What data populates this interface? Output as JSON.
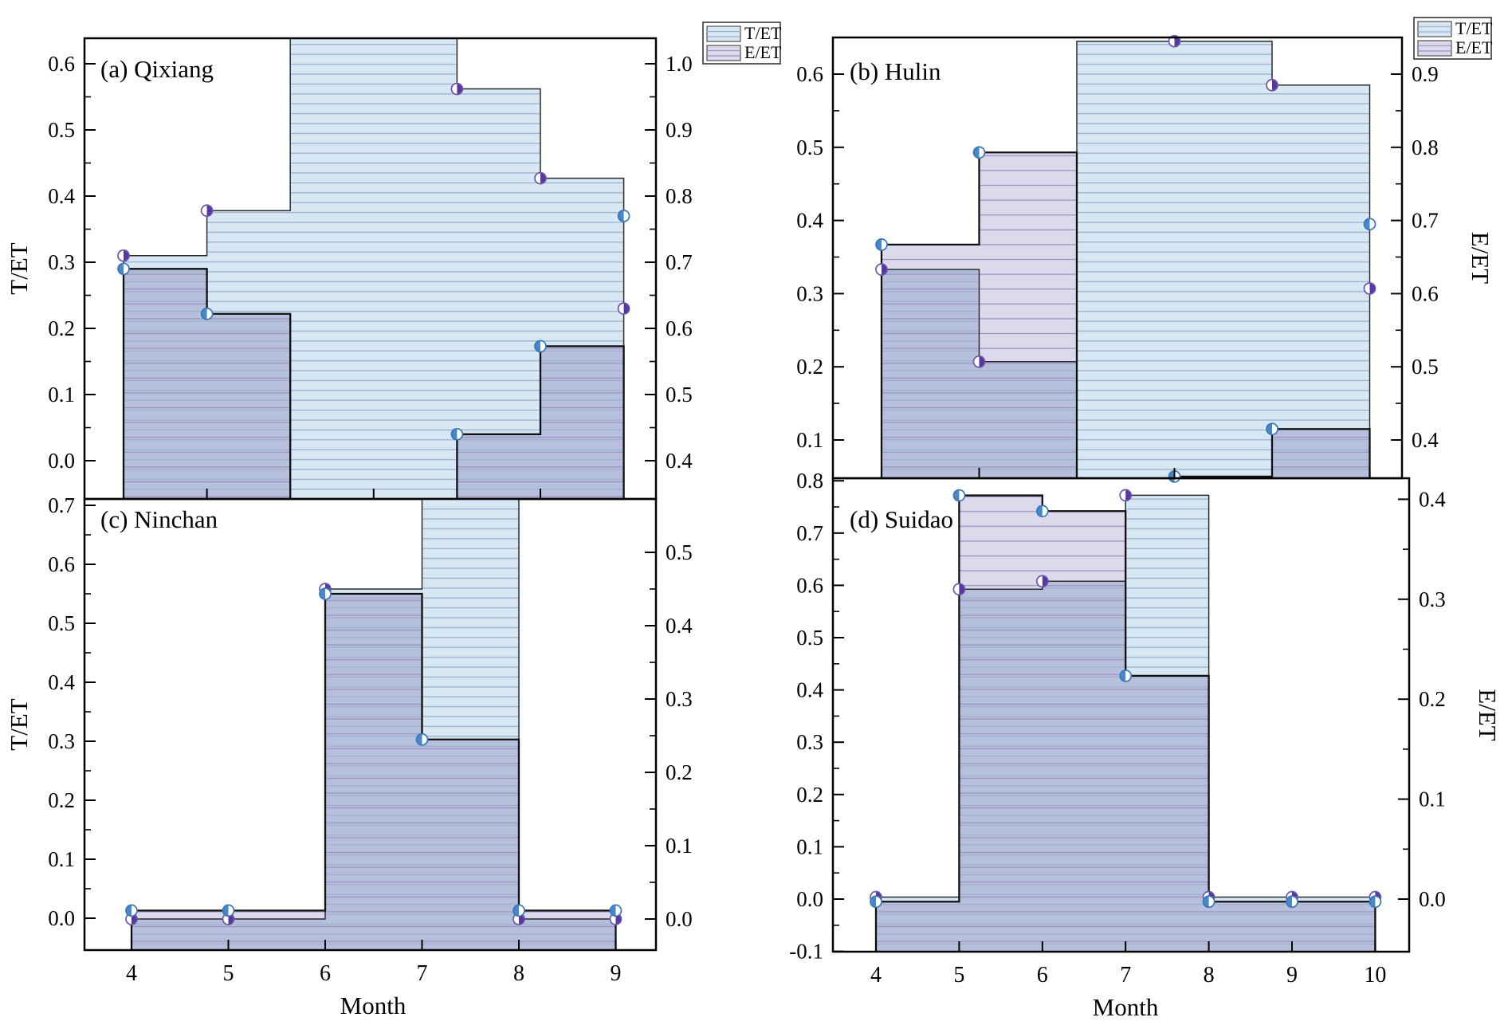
{
  "figure": {
    "kind": "four-panel step-area chart",
    "colors": {
      "t_et_fill": "#dcd9ec",
      "e_et_fill": "#d7e7f3",
      "overlap_fill": "#b6c0dd",
      "hatch_on_blue": "#9db1ce",
      "hatch_on_lavender": "#9c93c0",
      "series_t_marker": "#4688c9",
      "series_t_marker_edge": "#3a77b5",
      "series_e_marker": "#5837a0",
      "series_e_marker_edge": "#6a55ab",
      "outline_t": "#101010",
      "outline_e": "#2b2b2b",
      "frame": "#000000",
      "legend_border": "#4d4d4d",
      "text": "#000000"
    }
  },
  "legend": {
    "items": [
      {
        "label": "T/ET",
        "fill": "#d7e7f3",
        "hatch": "#9db1ce"
      },
      {
        "label": "E/ET",
        "fill": "#dcd9ec",
        "hatch": "#9c93c0"
      }
    ]
  },
  "chart_data": [
    {
      "type": "area",
      "panel": "a",
      "title": "(a) Qixiang",
      "x": [
        4,
        5,
        6,
        7,
        8,
        9,
        10
      ],
      "xlabel": null,
      "x_tick_months": [
        5,
        7,
        9
      ],
      "x_tick_labels_shown": false,
      "left_axis": {
        "label": "T/ET",
        "ticks": [
          0.0,
          0.1,
          0.2,
          0.3,
          0.4,
          0.5,
          0.6
        ],
        "range": [
          -0.058,
          0.64
        ]
      },
      "right_axis": {
        "label": null,
        "ticks": [
          0.4,
          0.5,
          0.6,
          0.7,
          0.8,
          0.9,
          1.0
        ],
        "range": [
          0.342,
          1.04
        ]
      },
      "series": [
        {
          "name": "T/ET",
          "axis": "left",
          "values": [
            0.29,
            0.222,
            null,
            null,
            0.04,
            0.173,
            0.37
          ],
          "poly": [
            0.29,
            0.222,
            -0.08,
            -0.08,
            0.04,
            0.173
          ],
          "markers": [
            [
              4,
              0.29
            ],
            [
              5,
              0.222
            ],
            [
              8,
              0.04
            ],
            [
              9,
              0.173
            ],
            [
              10,
              0.37
            ]
          ],
          "note": "months 6-7 below visible axis range; poly sentinel -0.08"
        },
        {
          "name": "E/ET",
          "axis": "right",
          "values": [
            0.71,
            0.778,
            null,
            null,
            0.962,
            0.827,
            0.63
          ],
          "poly": [
            0.71,
            0.778,
            1.1,
            1.1,
            0.962,
            0.827
          ],
          "markers": [
            [
              4,
              0.71
            ],
            [
              5,
              0.778
            ],
            [
              8,
              0.962
            ],
            [
              9,
              0.827
            ],
            [
              10,
              0.63
            ]
          ],
          "note": "months 6-7 off-scale high, bar clipped at frame top; poly sentinel 1.1"
        }
      ]
    },
    {
      "type": "area",
      "panel": "b",
      "title": "(b) Hulin",
      "x": [
        4,
        5,
        6,
        7,
        8,
        9
      ],
      "xlabel": null,
      "x_tick_months": [
        5,
        7,
        9
      ],
      "x_tick_labels_shown": false,
      "left_axis": {
        "label": null,
        "ticks": [
          0.1,
          0.2,
          0.3,
          0.4,
          0.5,
          0.6
        ],
        "range": [
          0.048,
          0.651
        ]
      },
      "right_axis": {
        "label": "E/ET",
        "ticks": [
          0.4,
          0.5,
          0.6,
          0.7,
          0.8,
          0.9
        ],
        "range": [
          0.348,
          0.951
        ]
      },
      "series": [
        {
          "name": "T/ET",
          "axis": "left",
          "values": [
            0.367,
            0.493,
            null,
            0.05,
            0.115,
            0.395
          ],
          "poly": [
            0.367,
            0.493,
            0.0,
            0.05,
            0.115
          ],
          "markers": [
            [
              4,
              0.367
            ],
            [
              5,
              0.493
            ],
            [
              7,
              0.05
            ],
            [
              8,
              0.115
            ],
            [
              9,
              0.395
            ]
          ],
          "note": "month 6 below visible axis range; poly sentinel 0.0"
        },
        {
          "name": "E/ET",
          "axis": "right",
          "values": [
            0.633,
            0.507,
            0.945,
            0.945,
            0.885,
            0.607
          ],
          "poly": [
            0.633,
            0.507,
            0.945,
            0.945,
            0.885
          ],
          "markers": [
            [
              4,
              0.633
            ],
            [
              5,
              0.507
            ],
            [
              7,
              0.945
            ],
            [
              8,
              0.885
            ],
            [
              9,
              0.607
            ]
          ]
        }
      ]
    },
    {
      "type": "area",
      "panel": "c",
      "title": "(c) Ninchan",
      "x": [
        4,
        5,
        6,
        7,
        8,
        9
      ],
      "xlabel": "Month",
      "x_tick_months": [
        4,
        5,
        6,
        7,
        8,
        9
      ],
      "x_tick_labels_shown": true,
      "left_axis": {
        "label": "T/ET",
        "ticks": [
          0.0,
          0.1,
          0.2,
          0.3,
          0.4,
          0.5,
          0.6,
          0.7
        ],
        "range": [
          -0.054,
          0.711
        ]
      },
      "right_axis": {
        "label": null,
        "ticks": [
          0.0,
          0.1,
          0.2,
          0.3,
          0.4,
          0.5
        ],
        "range": [
          -0.042,
          0.573
        ]
      },
      "series": [
        {
          "name": "T/ET",
          "axis": "left",
          "values": [
            0.013,
            0.013,
            0.55,
            0.303,
            0.013,
            0.013
          ],
          "poly": [
            0.013,
            0.013,
            0.55,
            0.303,
            0.013
          ],
          "markers": [
            [
              4,
              0.013
            ],
            [
              5,
              0.013
            ],
            [
              6,
              0.55
            ],
            [
              7,
              0.303
            ],
            [
              8,
              0.013
            ],
            [
              9,
              0.013
            ]
          ]
        },
        {
          "name": "E/ET",
          "axis": "right",
          "values": [
            0.0,
            0.0,
            0.45,
            null,
            0.0,
            0.0
          ],
          "poly": [
            0.0,
            0.0,
            0.45,
            0.62,
            0.0
          ],
          "markers": [
            [
              4,
              0.0
            ],
            [
              5,
              0.0
            ],
            [
              6,
              0.45
            ],
            [
              8,
              0.0
            ],
            [
              9,
              0.0
            ]
          ],
          "note": "month 7 off-scale high, bar clipped at frame top; poly sentinel 0.62"
        }
      ]
    },
    {
      "type": "area",
      "panel": "d",
      "title": "(d) Suidao",
      "x": [
        4,
        5,
        6,
        7,
        8,
        9,
        10
      ],
      "xlabel": "Month",
      "x_tick_months": [
        4,
        5,
        6,
        7,
        8,
        9,
        10
      ],
      "x_tick_labels_shown": true,
      "left_axis": {
        "label": null,
        "ticks": [
          -0.1,
          0.0,
          0.1,
          0.2,
          0.3,
          0.4,
          0.5,
          0.6,
          0.7,
          0.8
        ],
        "range": [
          -0.1,
          0.805
        ]
      },
      "right_axis": {
        "label": "E/ET",
        "ticks": [
          0.0,
          0.1,
          0.2,
          0.3,
          0.4
        ],
        "range": [
          -0.052,
          0.421
        ]
      },
      "series": [
        {
          "name": "T/ET",
          "axis": "left",
          "values": [
            -0.005,
            0.772,
            0.742,
            0.427,
            -0.005,
            -0.005,
            -0.005
          ],
          "poly": [
            -0.005,
            0.772,
            0.742,
            0.427,
            -0.005,
            -0.005
          ],
          "markers": [
            [
              4,
              -0.005
            ],
            [
              5,
              0.772
            ],
            [
              6,
              0.742
            ],
            [
              7,
              0.427
            ],
            [
              8,
              -0.005
            ],
            [
              9,
              -0.005
            ],
            [
              10,
              -0.005
            ]
          ]
        },
        {
          "name": "E/ET",
          "axis": "right",
          "values": [
            0.002,
            0.31,
            0.318,
            0.404,
            0.002,
            0.002,
            0.002
          ],
          "poly": [
            0.002,
            0.31,
            0.318,
            0.404,
            0.002,
            0.002
          ],
          "markers": [
            [
              4,
              0.002
            ],
            [
              5,
              0.31
            ],
            [
              6,
              0.318
            ],
            [
              7,
              0.404
            ],
            [
              8,
              0.002
            ],
            [
              9,
              0.002
            ],
            [
              10,
              0.002
            ]
          ]
        }
      ]
    }
  ]
}
